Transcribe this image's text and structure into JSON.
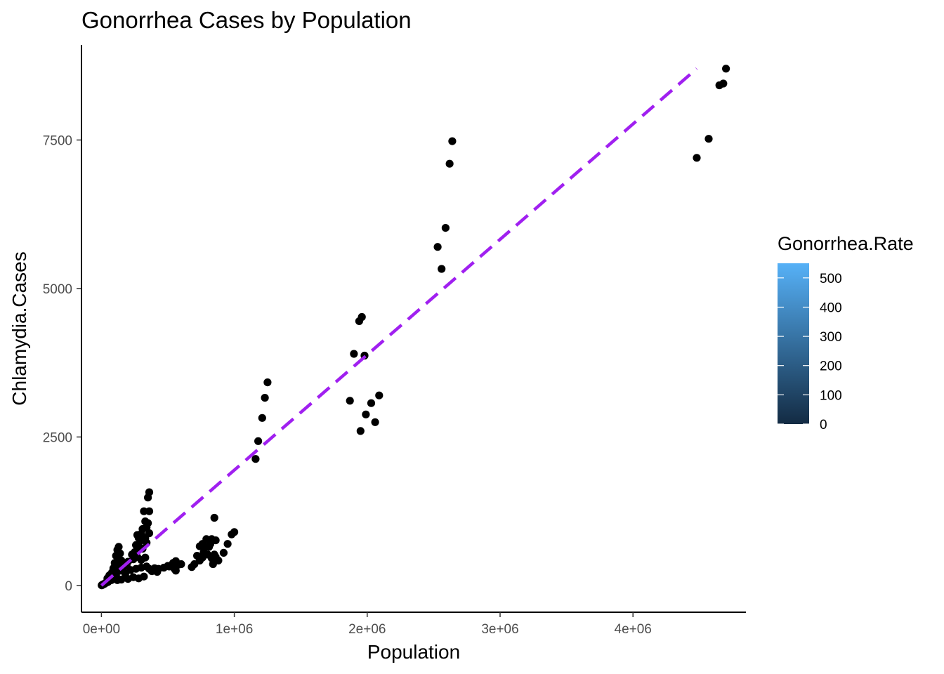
{
  "chart_data": {
    "type": "scatter",
    "title": "Gonorrhea Cases by Population",
    "xlabel": "Population",
    "ylabel": "Chlamydia.Cases",
    "xlim": [
      -150000,
      4850000
    ],
    "ylim": [
      -450,
      9100
    ],
    "x_ticks": [
      {
        "value": 0,
        "label": "0e+00"
      },
      {
        "value": 1000000,
        "label": "1e+06"
      },
      {
        "value": 2000000,
        "label": "2e+06"
      },
      {
        "value": 3000000,
        "label": "3e+06"
      },
      {
        "value": 4000000,
        "label": "4e+06"
      }
    ],
    "y_ticks": [
      {
        "value": 0,
        "label": "0"
      },
      {
        "value": 2500,
        "label": "2500"
      },
      {
        "value": 5000,
        "label": "5000"
      },
      {
        "value": 7500,
        "label": "7500"
      }
    ],
    "grid": false,
    "point_color": "#000000",
    "trend_line": {
      "style": "dashed",
      "color": "#A020F0",
      "x": [
        0,
        4480000
      ],
      "y": [
        0,
        8700
      ]
    },
    "legend": {
      "title": "Gonorrhea.Rate",
      "placement": "right",
      "type": "colorbar",
      "low_color": "#132B43",
      "high_color": "#56B1F7",
      "range": [
        0,
        550
      ],
      "ticks": [
        {
          "value": 0,
          "label": "0"
        },
        {
          "value": 100,
          "label": "100"
        },
        {
          "value": 200,
          "label": "200"
        },
        {
          "value": 300,
          "label": "300"
        },
        {
          "value": 400,
          "label": "400"
        },
        {
          "value": 500,
          "label": "500"
        }
      ]
    },
    "series": [
      {
        "points": [
          [
            4700000,
            8700
          ],
          [
            4680000,
            8450
          ],
          [
            4650000,
            8420
          ],
          [
            4570000,
            7520
          ],
          [
            4480000,
            7200
          ],
          [
            2640000,
            7480
          ],
          [
            2620000,
            7100
          ],
          [
            2590000,
            6020
          ],
          [
            2530000,
            5700
          ],
          [
            2560000,
            5330
          ],
          [
            1960000,
            4520
          ],
          [
            1940000,
            4450
          ],
          [
            1900000,
            3900
          ],
          [
            1980000,
            3870
          ],
          [
            1870000,
            3110
          ],
          [
            2090000,
            3200
          ],
          [
            2030000,
            3070
          ],
          [
            1990000,
            2880
          ],
          [
            2060000,
            2750
          ],
          [
            1950000,
            2600
          ],
          [
            1250000,
            3420
          ],
          [
            1230000,
            3160
          ],
          [
            1210000,
            2820
          ],
          [
            1180000,
            2430
          ],
          [
            1160000,
            2130
          ],
          [
            1000000,
            900
          ],
          [
            980000,
            860
          ],
          [
            950000,
            700
          ],
          [
            920000,
            550
          ],
          [
            850000,
            1140
          ],
          [
            860000,
            760
          ],
          [
            830000,
            780
          ],
          [
            820000,
            700
          ],
          [
            810000,
            650
          ],
          [
            790000,
            780
          ],
          [
            780000,
            650
          ],
          [
            770000,
            560
          ],
          [
            760000,
            700
          ],
          [
            740000,
            660
          ],
          [
            720000,
            500
          ],
          [
            850000,
            520
          ],
          [
            830000,
            460
          ],
          [
            880000,
            420
          ],
          [
            860000,
            480
          ],
          [
            840000,
            360
          ],
          [
            800000,
            520
          ],
          [
            760000,
            470
          ],
          [
            740000,
            420
          ],
          [
            700000,
            360
          ],
          [
            680000,
            310
          ],
          [
            360000,
            1570
          ],
          [
            350000,
            1480
          ],
          [
            320000,
            1250
          ],
          [
            360000,
            1250
          ],
          [
            330000,
            1080
          ],
          [
            350000,
            1050
          ],
          [
            340000,
            980
          ],
          [
            310000,
            950
          ],
          [
            300000,
            870
          ],
          [
            360000,
            880
          ],
          [
            270000,
            850
          ],
          [
            280000,
            800
          ],
          [
            330000,
            800
          ],
          [
            300000,
            760
          ],
          [
            340000,
            720
          ],
          [
            260000,
            680
          ],
          [
            290000,
            640
          ],
          [
            310000,
            620
          ],
          [
            250000,
            560
          ],
          [
            230000,
            520
          ],
          [
            270000,
            480
          ],
          [
            240000,
            440
          ],
          [
            330000,
            470
          ],
          [
            300000,
            430
          ],
          [
            200000,
            400
          ],
          [
            130000,
            650
          ],
          [
            120000,
            600
          ],
          [
            140000,
            540
          ],
          [
            110000,
            500
          ],
          [
            130000,
            470
          ],
          [
            150000,
            420
          ],
          [
            100000,
            380
          ],
          [
            120000,
            330
          ],
          [
            170000,
            360
          ],
          [
            190000,
            330
          ],
          [
            160000,
            290
          ],
          [
            90000,
            290
          ],
          [
            140000,
            250
          ],
          [
            80000,
            220
          ],
          [
            60000,
            170
          ],
          [
            110000,
            170
          ],
          [
            180000,
            200
          ],
          [
            220000,
            260
          ],
          [
            260000,
            280
          ],
          [
            300000,
            300
          ],
          [
            340000,
            320
          ],
          [
            360000,
            280
          ],
          [
            380000,
            240
          ],
          [
            420000,
            230
          ],
          [
            400000,
            290
          ],
          [
            430000,
            280
          ],
          [
            470000,
            300
          ],
          [
            510000,
            320
          ],
          [
            550000,
            280
          ],
          [
            560000,
            250
          ],
          [
            540000,
            380
          ],
          [
            560000,
            410
          ],
          [
            580000,
            350
          ],
          [
            600000,
            360
          ],
          [
            500000,
            330
          ],
          [
            280000,
            120
          ],
          [
            320000,
            150
          ],
          [
            240000,
            140
          ],
          [
            200000,
            110
          ],
          [
            150000,
            100
          ],
          [
            120000,
            90
          ],
          [
            100000,
            130
          ],
          [
            60000,
            80
          ],
          [
            50000,
            60
          ],
          [
            40000,
            50
          ],
          [
            30000,
            40
          ],
          [
            25000,
            30
          ],
          [
            20000,
            25
          ],
          [
            15000,
            20
          ],
          [
            12000,
            18
          ],
          [
            10000,
            15
          ],
          [
            8000,
            10
          ],
          [
            5000,
            8
          ],
          [
            3000,
            5
          ],
          [
            2000,
            3
          ],
          [
            45000,
            120
          ],
          [
            70000,
            150
          ],
          [
            90000,
            200
          ],
          [
            85000,
            110
          ],
          [
            75000,
            90
          ]
        ]
      }
    ]
  }
}
